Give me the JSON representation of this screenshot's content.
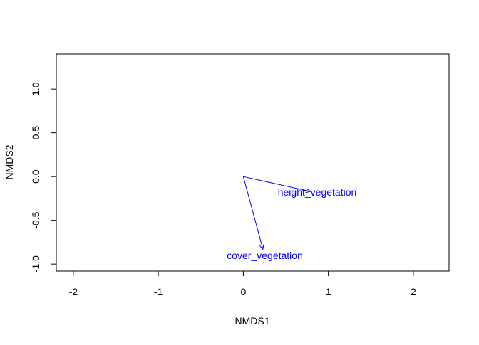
{
  "chart_data": {
    "type": "vector",
    "title": "",
    "xlabel": "NMDS1",
    "ylabel": "NMDS2",
    "xlim": [
      -2.2,
      2.42
    ],
    "ylim": [
      -1.08,
      1.4
    ],
    "x_ticks": [
      -2,
      -1,
      0,
      1,
      2
    ],
    "x_tick_labels": [
      "-2",
      "-1",
      "0",
      "1",
      "2"
    ],
    "y_ticks": [
      -1.0,
      -0.5,
      0.0,
      0.5,
      1.0
    ],
    "y_tick_labels": [
      "-1.0",
      "-0.5",
      "0.0",
      "0.5",
      "1.0"
    ],
    "grid": false,
    "origin": [
      0,
      0
    ],
    "vectors": [
      {
        "name": "height_vegetation",
        "x": 0.79,
        "y": -0.17
      },
      {
        "name": "cover_vegetation",
        "x": 0.23,
        "y": -0.83
      }
    ],
    "vector_color": "#0000ff",
    "axis_color": "#000000"
  }
}
